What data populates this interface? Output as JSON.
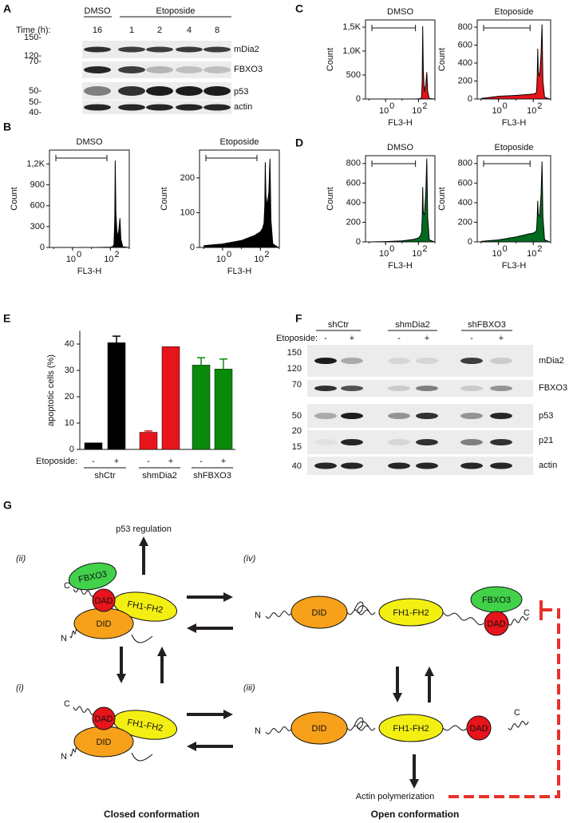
{
  "panels": {
    "A": {
      "label": "A",
      "groups": [
        "DMSO",
        "Etoposide"
      ],
      "time_label": "Time (h):",
      "times": [
        "16",
        "1",
        "2",
        "4",
        "8"
      ],
      "markers": [
        "150-",
        "120-",
        "70-",
        "50-",
        "50-",
        "40-"
      ],
      "proteins": [
        "mDia2",
        "FBXO3",
        "p53",
        "actin"
      ]
    },
    "B": {
      "label": "B",
      "plots": [
        {
          "title": "DMSO",
          "xlabel": "FL3-H",
          "ylabel": "Count",
          "color": "#000000",
          "log_x": true,
          "xlim": [
            0.06,
            1000
          ],
          "xticks": [
            {
              "value": 1,
              "label": "10",
              "exponent": "0"
            },
            {
              "value": 100,
              "label": "10",
              "exponent": "2"
            }
          ],
          "ylim": [
            0,
            1400
          ],
          "yticks": [
            0,
            300,
            600,
            900,
            {
              "value": 1200,
              "label": "1,2K"
            }
          ],
          "x": [
            0.1,
            1,
            10,
            50,
            100,
            130,
            155,
            170,
            180,
            195,
            230,
            280,
            320,
            360,
            450,
            900
          ],
          "counts": [
            0,
            0,
            0,
            2,
            5,
            10,
            40,
            400,
            1250,
            500,
            150,
            250,
            420,
            120,
            10,
            0
          ]
        },
        {
          "title": "Etoposide",
          "xlabel": "FL3-H",
          "ylabel": "Count",
          "color": "#000000",
          "log_x": true,
          "xlim": [
            0.06,
            1000
          ],
          "xticks": [
            {
              "value": 1,
              "label": "10",
              "exponent": "0"
            },
            {
              "value": 100,
              "label": "10",
              "exponent": "2"
            }
          ],
          "ylim": [
            0,
            280
          ],
          "yticks": [
            0,
            100,
            200
          ],
          "x": [
            0.1,
            1,
            10,
            50,
            100,
            130,
            155,
            170,
            180,
            195,
            230,
            280,
            320,
            360,
            450,
            900
          ],
          "counts": [
            5,
            10,
            20,
            35,
            45,
            55,
            70,
            120,
            245,
            150,
            120,
            160,
            255,
            80,
            10,
            0
          ]
        }
      ]
    },
    "C": {
      "label": "C",
      "plots": [
        {
          "title": "DMSO",
          "xlabel": "FL3-H",
          "ylabel": "Count",
          "color": "#e8141b",
          "log_x": true,
          "xlim": [
            0.06,
            1000
          ],
          "xticks": [
            {
              "value": 1,
              "label": "10",
              "exponent": "0"
            },
            {
              "value": 100,
              "label": "10",
              "exponent": "2"
            }
          ],
          "ylim": [
            0,
            1650
          ],
          "yticks": [
            0,
            500,
            {
              "value": 1000,
              "label": "1,0K"
            },
            {
              "value": 1500,
              "label": "1,5K"
            }
          ],
          "x": [
            0.1,
            1,
            10,
            50,
            100,
            130,
            155,
            170,
            180,
            195,
            230,
            280,
            320,
            360,
            450,
            900
          ],
          "counts": [
            0,
            0,
            0,
            0,
            3,
            8,
            30,
            400,
            1520,
            600,
            150,
            300,
            560,
            150,
            10,
            0
          ]
        },
        {
          "title": "Etoposide",
          "xlabel": "FL3-H",
          "ylabel": "Count",
          "color": "#e8141b",
          "log_x": true,
          "xlim": [
            0.06,
            1000
          ],
          "xticks": [
            {
              "value": 1,
              "label": "10",
              "exponent": "0"
            },
            {
              "value": 100,
              "label": "10",
              "exponent": "2"
            }
          ],
          "ylim": [
            0,
            880
          ],
          "yticks": [
            0,
            200,
            400,
            600,
            800
          ],
          "x": [
            0.1,
            1,
            10,
            50,
            100,
            130,
            155,
            170,
            180,
            195,
            230,
            280,
            320,
            360,
            450,
            900
          ],
          "counts": [
            5,
            30,
            40,
            50,
            55,
            60,
            80,
            250,
            560,
            300,
            250,
            500,
            830,
            200,
            20,
            0
          ]
        }
      ]
    },
    "D": {
      "label": "D",
      "plots": [
        {
          "title": "DMSO",
          "xlabel": "FL3-H",
          "ylabel": "Count",
          "color": "#006b1f",
          "log_x": true,
          "xlim": [
            0.06,
            1000
          ],
          "xticks": [
            {
              "value": 1,
              "label": "10",
              "exponent": "0"
            },
            {
              "value": 100,
              "label": "10",
              "exponent": "2"
            }
          ],
          "ylim": [
            0,
            880
          ],
          "yticks": [
            0,
            200,
            400,
            600,
            800
          ],
          "x": [
            0.1,
            1,
            10,
            50,
            100,
            130,
            155,
            170,
            180,
            195,
            230,
            280,
            320,
            360,
            450,
            900
          ],
          "counts": [
            0,
            3,
            10,
            25,
            40,
            60,
            100,
            250,
            560,
            300,
            280,
            500,
            850,
            250,
            20,
            0
          ]
        },
        {
          "title": "Etoposide",
          "xlabel": "FL3-H",
          "ylabel": "Count",
          "color": "#006b1f",
          "log_x": true,
          "xlim": [
            0.06,
            1000
          ],
          "xticks": [
            {
              "value": 1,
              "label": "10",
              "exponent": "0"
            },
            {
              "value": 100,
              "label": "10",
              "exponent": "2"
            }
          ],
          "ylim": [
            0,
            880
          ],
          "yticks": [
            0,
            200,
            400,
            600,
            800
          ],
          "x": [
            0.1,
            1,
            10,
            50,
            100,
            130,
            155,
            170,
            180,
            195,
            230,
            280,
            320,
            360,
            450,
            900
          ],
          "counts": [
            5,
            20,
            50,
            80,
            90,
            100,
            120,
            250,
            420,
            280,
            260,
            480,
            820,
            250,
            20,
            0
          ]
        }
      ]
    },
    "E": {
      "label": "E",
      "type": "bar",
      "ylabel": "apoptotic cells (%)",
      "ylim": [
        0,
        45
      ],
      "yticks": [
        0,
        10,
        20,
        30,
        40
      ],
      "treatment_label": "Etoposide:",
      "groups": [
        "shCtr",
        "shmDia2",
        "shFBXO3"
      ],
      "treatments": [
        "-",
        "+"
      ],
      "colors": [
        "#000000",
        "#e8141b",
        "#0a8a0a"
      ],
      "values": [
        [
          2.5,
          40.5
        ],
        [
          6.5,
          39
        ],
        [
          32,
          30.5
        ]
      ],
      "errors": [
        [
          0,
          2.5
        ],
        [
          0.5,
          0
        ],
        [
          2.8,
          3.8
        ]
      ]
    },
    "F": {
      "label": "F",
      "groups": [
        "shCtr",
        "shmDia2",
        "shFBXO3"
      ],
      "treatment_label": "Etoposide:",
      "treatments": [
        "-",
        "+",
        "-",
        "+",
        "-",
        "+"
      ],
      "markers": [
        "150",
        "120",
        "70",
        "50",
        "20",
        "15",
        "40"
      ],
      "proteins": [
        "mDia2",
        "FBXO3",
        "p53",
        "p21",
        "actin"
      ]
    },
    "G": {
      "label": "G",
      "output_top": "p53 regulation",
      "output_bottom": "Actin polymerization",
      "complexes": [
        {
          "tag": "(ii)",
          "c": "C",
          "n": "N",
          "fbxo3": "FBXO3",
          "dad": "DAD",
          "did": "DID",
          "fh": "FH1-FH2"
        },
        {
          "tag": "(i)",
          "c": "C",
          "n": "N",
          "dad": "DAD",
          "did": "DID",
          "fh": "FH1-FH2"
        },
        {
          "tag": "(iv)",
          "c": "C",
          "n": "N",
          "fbxo3": "FBXO3",
          "dad": "DAD",
          "did": "DID",
          "fh": "FH1-FH2"
        },
        {
          "tag": "(iii)",
          "c": "C",
          "n": "N",
          "dad": "DAD",
          "did": "DID",
          "fh": "FH1-FH2"
        }
      ],
      "captions": [
        "Closed conformation",
        "Open conformation"
      ]
    }
  }
}
